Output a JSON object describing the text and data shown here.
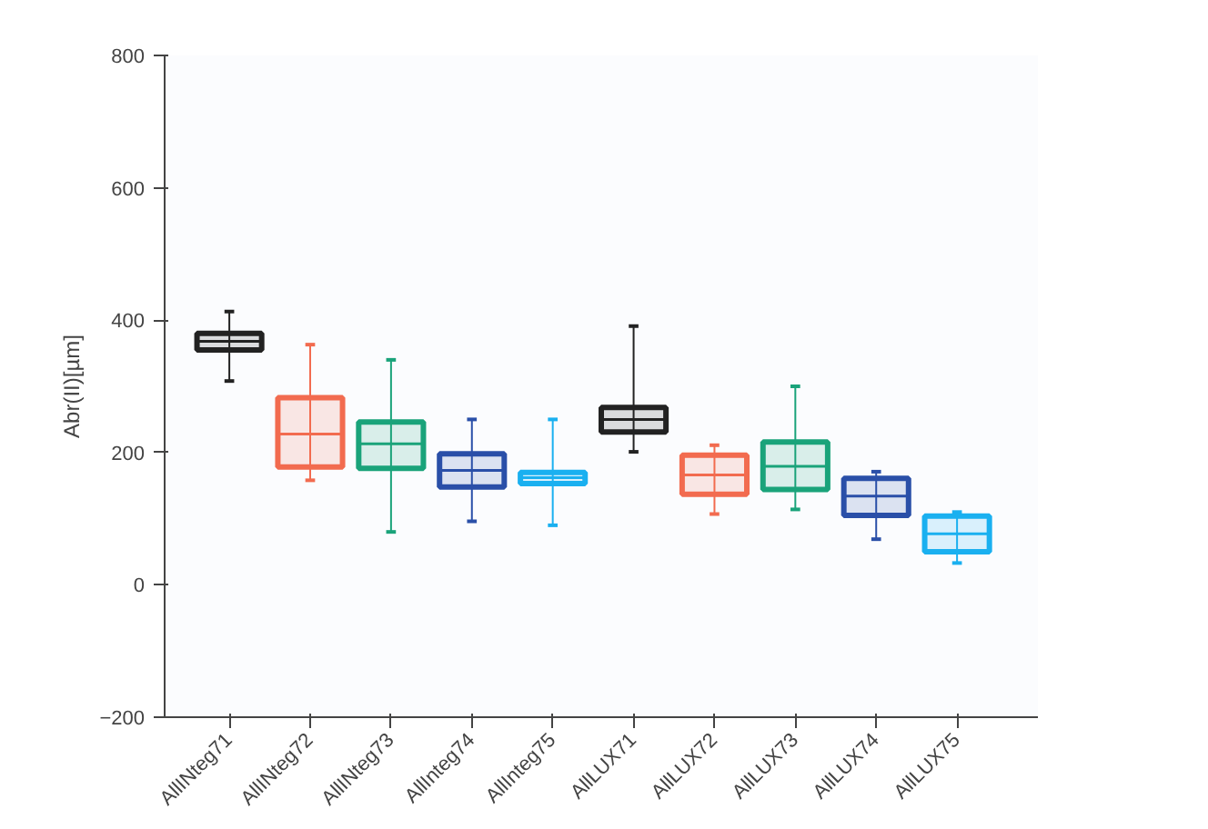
{
  "chart_data": {
    "type": "box",
    "ylabel": "Abr(II)[µm]",
    "categories": [
      "AllINteg71",
      "AllINteg72",
      "AllINteg73",
      "AllInteg74",
      "AllInteg75",
      "AllLUX71",
      "AllLUX72",
      "AllLUX73",
      "AllLUX74",
      "AllLUX75"
    ],
    "colors": [
      "#222222",
      "#f26b4f",
      "#1aa37a",
      "#2a4fa8",
      "#1ab0f0",
      "#222222",
      "#f26b4f",
      "#1aa37a",
      "#2a4fa8",
      "#1ab0f0"
    ],
    "boxes": [
      {
        "low": 308,
        "q1": 355,
        "median": 368,
        "q3": 380,
        "high": 413
      },
      {
        "low": 158,
        "q1": 178,
        "median": 228,
        "q3": 283,
        "high": 363
      },
      {
        "low": 80,
        "q1": 176,
        "median": 213,
        "q3": 246,
        "high": 340
      },
      {
        "low": 96,
        "q1": 148,
        "median": 173,
        "q3": 198,
        "high": 250
      },
      {
        "low": 90,
        "q1": 153,
        "median": 162,
        "q3": 170,
        "high": 250
      },
      {
        "low": 201,
        "q1": 231,
        "median": 250,
        "q3": 268,
        "high": 391
      },
      {
        "low": 107,
        "q1": 137,
        "median": 166,
        "q3": 196,
        "high": 211
      },
      {
        "low": 114,
        "q1": 144,
        "median": 179,
        "q3": 216,
        "high": 300
      },
      {
        "low": 69,
        "q1": 105,
        "median": 134,
        "q3": 161,
        "high": 171
      },
      {
        "low": 33,
        "q1": 50,
        "median": 77,
        "q3": 104,
        "high": 110
      }
    ],
    "ylim": [
      -200,
      800
    ],
    "yticks": [
      -200,
      0,
      200,
      400,
      600,
      800
    ]
  }
}
